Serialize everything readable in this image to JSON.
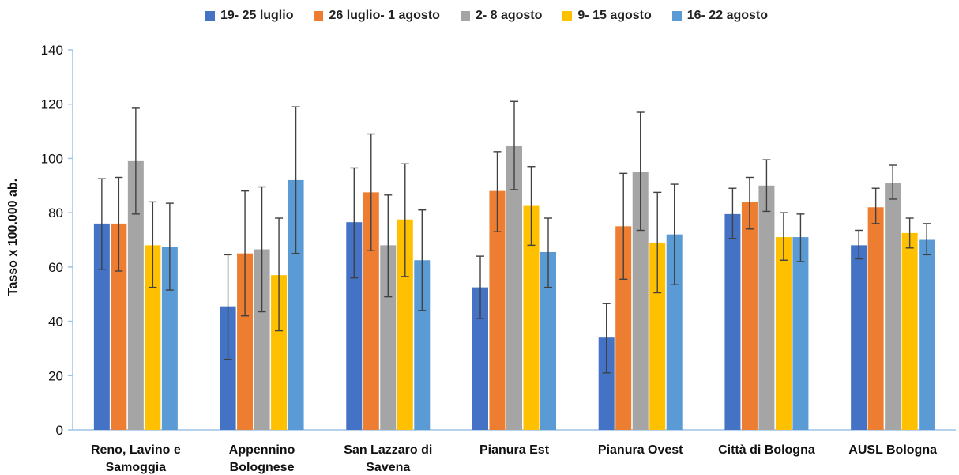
{
  "chart_data": {
    "type": "bar",
    "title": "",
    "xlabel": "",
    "ylabel": "Tasso x 100.000 ab.",
    "ylim": [
      0,
      140
    ],
    "yticks": [
      0,
      20,
      40,
      60,
      80,
      100,
      120,
      140
    ],
    "grid": false,
    "legend_position": "top",
    "categories": [
      [
        "Reno, Lavino e",
        "Samoggia"
      ],
      [
        "Appennino",
        "Bolognese"
      ],
      [
        "San Lazzaro di",
        "Savena"
      ],
      [
        "Pianura Est"
      ],
      [
        "Pianura Ovest"
      ],
      [
        "Città di Bologna"
      ],
      [
        "AUSL Bologna"
      ]
    ],
    "series": [
      {
        "name": "19- 25 luglio",
        "color": "#4472C4",
        "values": [
          76,
          45.5,
          76.5,
          52.5,
          34,
          79.5,
          68
        ],
        "err_low": [
          59,
          26,
          56,
          41,
          21,
          70.5,
          63
        ],
        "err_high": [
          92.5,
          64.5,
          96.5,
          64,
          46.5,
          89,
          73.5
        ]
      },
      {
        "name": "26 luglio- 1 agosto",
        "color": "#ED7D31",
        "values": [
          76,
          65,
          87.5,
          88,
          75,
          84,
          82
        ],
        "err_low": [
          58.5,
          42,
          66,
          73,
          55.5,
          74,
          76
        ],
        "err_high": [
          93,
          88,
          109,
          102.5,
          94.5,
          93,
          89
        ]
      },
      {
        "name": "2- 8 agosto",
        "color": "#A5A5A5",
        "values": [
          99,
          66.5,
          68,
          104.5,
          95,
          90,
          91
        ],
        "err_low": [
          79.5,
          43.5,
          49,
          88.5,
          73.5,
          80.5,
          85
        ],
        "err_high": [
          118.5,
          89.5,
          86.5,
          121,
          117,
          99.5,
          97.5
        ]
      },
      {
        "name": "9- 15 agosto",
        "color": "#FFC000",
        "values": [
          68,
          57,
          77.5,
          82.5,
          69,
          71,
          72.5
        ],
        "err_low": [
          52.5,
          36.5,
          56.5,
          68,
          50.5,
          62.5,
          67
        ],
        "err_high": [
          84,
          78,
          98,
          97,
          87.5,
          80,
          78
        ]
      },
      {
        "name": "16- 22 agosto",
        "color": "#5B9BD5",
        "values": [
          67.5,
          92,
          62.5,
          65.5,
          72,
          71,
          70
        ],
        "err_low": [
          51.5,
          65,
          44,
          52.5,
          53.5,
          62,
          64.5
        ],
        "err_high": [
          83.5,
          119,
          81,
          78,
          90.5,
          79.5,
          76
        ]
      }
    ]
  }
}
